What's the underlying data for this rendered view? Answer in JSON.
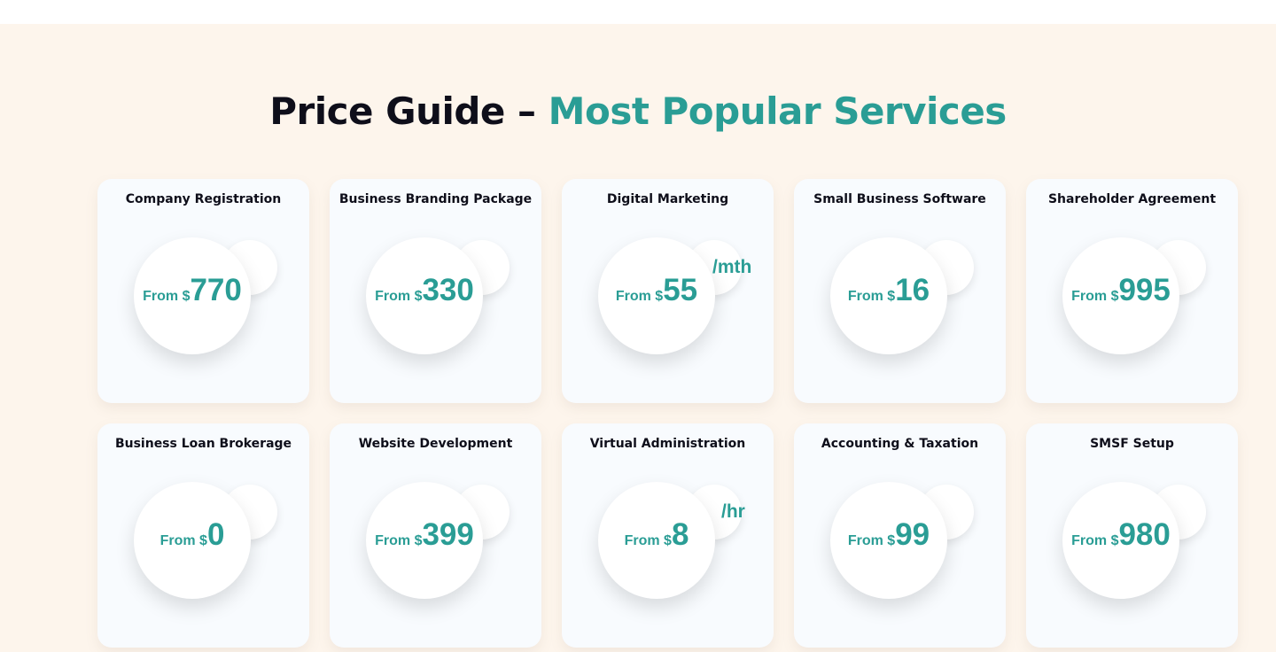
{
  "header": {
    "title_main": "Price Guide – ",
    "title_accent": "Most Popular Services"
  },
  "colors": {
    "accent": "#2a9d95",
    "background": "#fdf5ec",
    "card": "#f8fbfe"
  },
  "cards": [
    {
      "title": "Company Registration",
      "from": "From $",
      "amount": "770",
      "suffix": ""
    },
    {
      "title": "Business Branding Package",
      "from": "From $",
      "amount": "330",
      "suffix": ""
    },
    {
      "title": "Digital Marketing",
      "from": "From $",
      "amount": "55",
      "suffix": "/mth"
    },
    {
      "title": "Small Business Software",
      "from": "From $",
      "amount": "16",
      "suffix": ""
    },
    {
      "title": "Shareholder Agreement",
      "from": "From $",
      "amount": "995",
      "suffix": ""
    },
    {
      "title": "Business Loan Brokerage",
      "from": "From $",
      "amount": "0",
      "suffix": ""
    },
    {
      "title": "Website Development",
      "from": "From $",
      "amount": "399",
      "suffix": ""
    },
    {
      "title": "Virtual Administration",
      "from": "From $",
      "amount": "8",
      "suffix": "/hr"
    },
    {
      "title": "Accounting & Taxation",
      "from": "From $",
      "amount": "99",
      "suffix": ""
    },
    {
      "title": "SMSF Setup",
      "from": "From $",
      "amount": "980",
      "suffix": ""
    }
  ]
}
